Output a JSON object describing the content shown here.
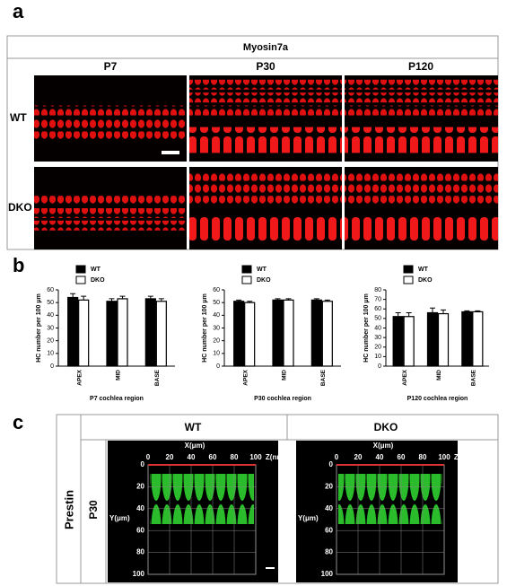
{
  "panel_a": {
    "label": "a",
    "stain": "Myosin7a",
    "columns": [
      "P7",
      "P30",
      "P120"
    ],
    "rows": [
      "WT",
      "DKO"
    ]
  },
  "panel_b": {
    "label": "b"
  },
  "chart_data": [
    {
      "type": "bar",
      "y_label": "HC number per 100 μm",
      "x_label": "P7 cochlea region",
      "categories": [
        "APEX",
        "MID",
        "BASE"
      ],
      "series": [
        {
          "name": "WT",
          "color": "#000000",
          "values": [
            54,
            51,
            53
          ],
          "errors": [
            3,
            2,
            2
          ]
        },
        {
          "name": "DKO",
          "color": "#ffffff",
          "values": [
            52,
            53,
            51
          ],
          "errors": [
            3,
            2,
            2
          ]
        }
      ],
      "ylim": [
        0,
        60
      ],
      "yticks": [
        0,
        10,
        20,
        30,
        40,
        50,
        60
      ]
    },
    {
      "type": "bar",
      "y_label": "HC number per 100 μm",
      "x_label": "P30 cochlea region",
      "categories": [
        "APEX",
        "MID",
        "BASE"
      ],
      "series": [
        {
          "name": "WT",
          "color": "#000000",
          "values": [
            51,
            52,
            52
          ],
          "errors": [
            1,
            1,
            1
          ]
        },
        {
          "name": "DKO",
          "color": "#ffffff",
          "values": [
            50,
            52,
            51
          ],
          "errors": [
            1,
            1,
            1
          ]
        }
      ],
      "ylim": [
        0,
        60
      ],
      "yticks": [
        0,
        10,
        20,
        30,
        40,
        50,
        60
      ]
    },
    {
      "type": "bar",
      "y_label": "HC number per 100 μm",
      "x_label": "P120 cochlea region",
      "categories": [
        "APEX",
        "MID",
        "BASE"
      ],
      "series": [
        {
          "name": "WT",
          "color": "#000000",
          "values": [
            52,
            56,
            57
          ],
          "errors": [
            4,
            5,
            1
          ]
        },
        {
          "name": "DKO",
          "color": "#ffffff",
          "values": [
            52,
            55,
            57
          ],
          "errors": [
            4,
            4,
            1
          ]
        }
      ],
      "ylim": [
        0,
        80
      ],
      "yticks": [
        0,
        10,
        20,
        30,
        40,
        50,
        60,
        70,
        80
      ]
    }
  ],
  "panel_c": {
    "label": "c",
    "marker": "Prestin",
    "age": "P30",
    "columns": [
      "WT",
      "DKO"
    ],
    "axes": {
      "x_label": "X(μm)",
      "z_label": "Z(nm)",
      "y_label": "Y(μm)",
      "xticks": [
        0,
        20,
        40,
        60,
        80,
        100
      ],
      "yticks": [
        0,
        20,
        40,
        60,
        80,
        100
      ]
    }
  }
}
